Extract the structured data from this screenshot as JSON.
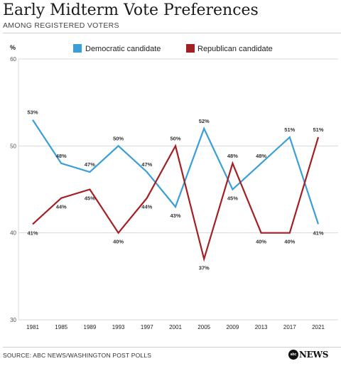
{
  "header": {
    "title": "Early Midterm Vote Preferences",
    "subtitle": "AMONG REGISTERED VOTERS"
  },
  "footer": {
    "source": "SOURCE: ABC NEWS/WASHINGTON POST POLLS",
    "logo": "NEWS",
    "logo_mark": "abc"
  },
  "colors": {
    "democratic": "#3a9fd8",
    "republican": "#a31f24",
    "grid": "#d9d9d9"
  },
  "chart_data": {
    "type": "line",
    "title": "Early Midterm Vote Preferences",
    "subtitle": "AMONG REGISTERED VOTERS",
    "ylabel": "%",
    "ylim": [
      30,
      60
    ],
    "yticks": [
      30,
      40,
      50,
      60
    ],
    "categories": [
      "1981",
      "1985",
      "1989",
      "1993",
      "1997",
      "2001",
      "2005",
      "2009",
      "2013",
      "2017",
      "2021"
    ],
    "series": [
      {
        "name": "Democratic candidate",
        "values": [
          53,
          48,
          47,
          50,
          47,
          43,
          52,
          45,
          48,
          51,
          41
        ],
        "labels": [
          "53%",
          "48%",
          "47%",
          "50%",
          "47%",
          "43%",
          "52%",
          "45%",
          "48%",
          "51%",
          "41%"
        ]
      },
      {
        "name": "Republican candidate",
        "values": [
          41,
          44,
          45,
          40,
          44,
          50,
          37,
          48,
          40,
          40,
          51
        ],
        "labels": [
          "41%",
          "44%",
          "45%",
          "40%",
          "44%",
          "50%",
          "37%",
          "48%",
          "40%",
          "40%",
          "51%"
        ]
      }
    ],
    "legend": "top"
  }
}
